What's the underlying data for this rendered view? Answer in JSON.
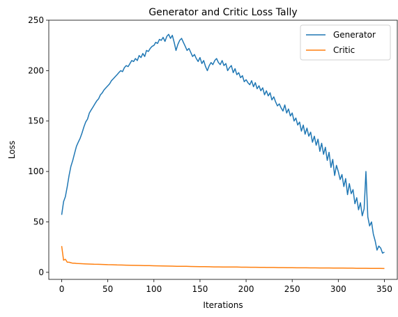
{
  "chart_data": {
    "type": "line",
    "title": "Generator and Critic Loss Tally",
    "xlabel": "Iterations",
    "ylabel": "Loss",
    "xlim": [
      -14,
      364
    ],
    "ylim": [
      -7,
      250
    ],
    "xticks": [
      0,
      50,
      100,
      150,
      200,
      250,
      300,
      350
    ],
    "yticks": [
      0,
      50,
      100,
      150,
      200,
      250
    ],
    "grid": false,
    "legend": "top-right",
    "series": [
      {
        "name": "Generator",
        "color": "#1f77b4",
        "x": [
          0,
          2,
          4,
          6,
          8,
          10,
          12,
          14,
          16,
          18,
          20,
          22,
          24,
          26,
          28,
          30,
          32,
          34,
          36,
          38,
          40,
          42,
          44,
          46,
          48,
          50,
          52,
          54,
          56,
          58,
          60,
          62,
          64,
          66,
          68,
          70,
          72,
          74,
          76,
          78,
          80,
          82,
          84,
          86,
          88,
          90,
          92,
          94,
          96,
          98,
          100,
          102,
          104,
          106,
          108,
          110,
          112,
          114,
          116,
          118,
          120,
          122,
          124,
          126,
          128,
          130,
          132,
          134,
          136,
          138,
          140,
          142,
          144,
          146,
          148,
          150,
          152,
          154,
          156,
          158,
          160,
          162,
          164,
          166,
          168,
          170,
          172,
          174,
          176,
          178,
          180,
          182,
          184,
          186,
          188,
          190,
          192,
          194,
          196,
          198,
          200,
          202,
          204,
          206,
          208,
          210,
          212,
          214,
          216,
          218,
          220,
          222,
          224,
          226,
          228,
          230,
          232,
          234,
          236,
          238,
          240,
          242,
          244,
          246,
          248,
          250,
          252,
          254,
          256,
          258,
          260,
          262,
          264,
          266,
          268,
          270,
          272,
          274,
          276,
          278,
          280,
          282,
          284,
          286,
          288,
          290,
          292,
          294,
          296,
          298,
          300,
          302,
          304,
          306,
          308,
          310,
          312,
          314,
          316,
          318,
          320,
          322,
          324,
          326,
          328,
          330,
          332,
          334,
          336,
          338,
          340,
          342,
          344,
          346,
          348,
          350
        ],
        "y": [
          57,
          70,
          75,
          85,
          96,
          105,
          111,
          118,
          125,
          129,
          133,
          138,
          144,
          149,
          152,
          158,
          161,
          164,
          167,
          170,
          172,
          176,
          178,
          181,
          183,
          185,
          187,
          190,
          192,
          194,
          196,
          198,
          200,
          199,
          203,
          205,
          204,
          207,
          210,
          209,
          212,
          210,
          215,
          213,
          217,
          214,
          220,
          219,
          222,
          224,
          225,
          228,
          227,
          231,
          230,
          233,
          229,
          234,
          236,
          232,
          235,
          228,
          220,
          226,
          230,
          232,
          228,
          224,
          220,
          222,
          218,
          214,
          216,
          212,
          209,
          213,
          207,
          210,
          204,
          200,
          205,
          208,
          206,
          210,
          212,
          208,
          206,
          210,
          205,
          207,
          200,
          203,
          205,
          198,
          202,
          196,
          198,
          193,
          195,
          189,
          191,
          188,
          186,
          190,
          184,
          188,
          182,
          185,
          180,
          183,
          176,
          180,
          175,
          178,
          171,
          174,
          169,
          165,
          167,
          163,
          160,
          166,
          158,
          162,
          155,
          158,
          150,
          153,
          146,
          149,
          140,
          146,
          137,
          143,
          135,
          139,
          129,
          135,
          126,
          132,
          120,
          128,
          117,
          124,
          111,
          119,
          104,
          112,
          96,
          106,
          100,
          92,
          97,
          85,
          93,
          77,
          88,
          78,
          82,
          68,
          74,
          62,
          69,
          56,
          63,
          100,
          55,
          46,
          50,
          38,
          31,
          22,
          26,
          24,
          19,
          20
        ]
      },
      {
        "name": "Critic",
        "color": "#ff7f0e",
        "x": [
          0,
          2,
          4,
          6,
          8,
          10,
          12,
          14,
          16,
          18,
          20,
          25,
          30,
          35,
          40,
          45,
          50,
          55,
          60,
          65,
          70,
          75,
          80,
          85,
          90,
          95,
          100,
          105,
          110,
          115,
          120,
          125,
          130,
          135,
          140,
          145,
          150,
          155,
          160,
          165,
          170,
          175,
          180,
          185,
          190,
          195,
          200,
          205,
          210,
          215,
          220,
          225,
          230,
          235,
          240,
          245,
          250,
          255,
          260,
          265,
          270,
          275,
          280,
          285,
          290,
          295,
          300,
          305,
          310,
          315,
          320,
          325,
          330,
          335,
          340,
          345,
          350
        ],
        "y": [
          26,
          12,
          13,
          10,
          10,
          9.5,
          9,
          9,
          8.8,
          8.7,
          8.6,
          8.4,
          8.2,
          8,
          7.9,
          7.8,
          7.6,
          7.5,
          7.3,
          7.2,
          7.1,
          7,
          6.9,
          6.8,
          6.7,
          6.6,
          6.5,
          6.4,
          6.3,
          6.2,
          6.1,
          6,
          5.9,
          5.9,
          5.8,
          5.7,
          5.6,
          5.6,
          5.5,
          5.4,
          5.4,
          5.3,
          5.3,
          5.2,
          5.2,
          5.1,
          5.1,
          5,
          5,
          4.9,
          4.9,
          4.8,
          4.8,
          4.7,
          4.7,
          4.6,
          4.6,
          4.5,
          4.5,
          4.5,
          4.4,
          4.4,
          4.3,
          4.3,
          4.3,
          4.2,
          4.2,
          4.2,
          4.1,
          4.1,
          4,
          4,
          4,
          3.9,
          3.9,
          3.9,
          3.8
        ]
      }
    ]
  }
}
